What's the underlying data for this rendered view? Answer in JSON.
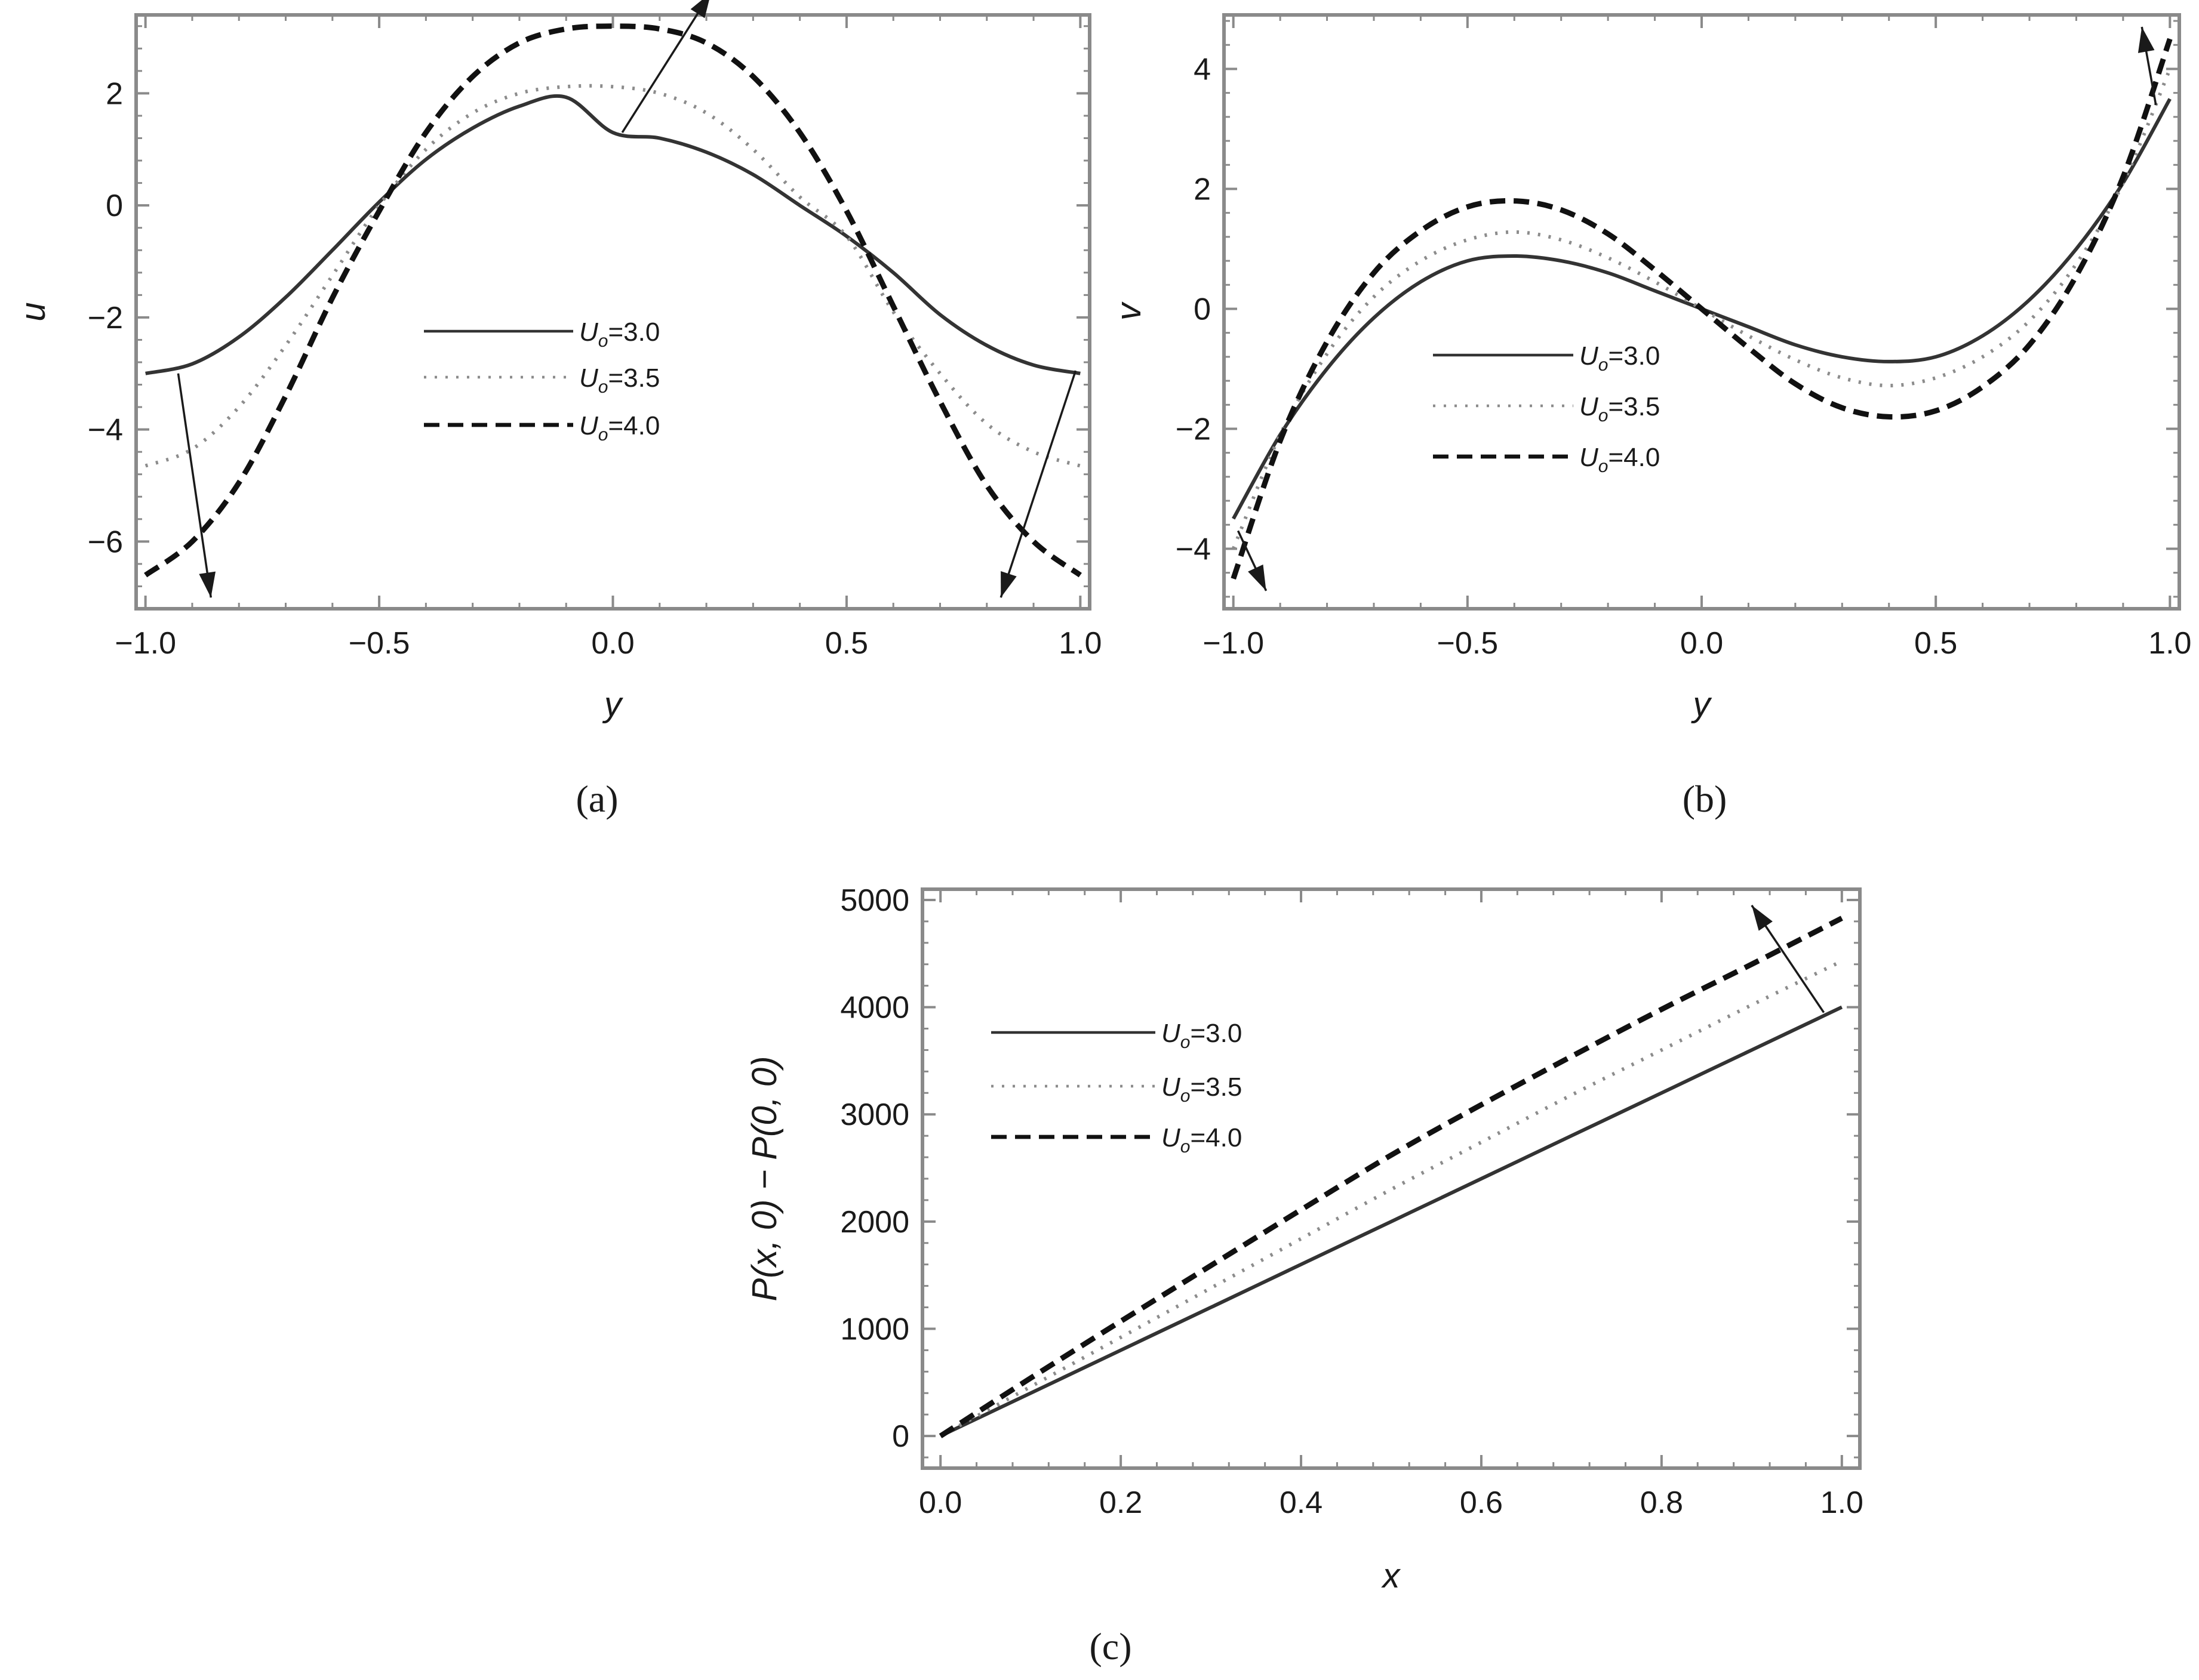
{
  "chart_data": [
    {
      "panel": "a",
      "caption": "(a)",
      "type": "line",
      "xlabel": "y",
      "ylabel": "u",
      "xlim": [
        -1.02,
        1.02
      ],
      "ylim": [
        -7.2,
        3.4
      ],
      "xticks": [
        -1.0,
        -0.5,
        0.0,
        0.5,
        1.0
      ],
      "xtick_labels": [
        "−1.0",
        "−0.5",
        "0.0",
        "0.5",
        "1.0"
      ],
      "yticks": [
        -6,
        -4,
        -2,
        0,
        2
      ],
      "ytick_labels": [
        "−6",
        "−4",
        "−2",
        "0",
        "2"
      ],
      "legend_position": "center",
      "grid": false,
      "series": [
        {
          "name": "Uo=3.0",
          "style": "solid",
          "x": [
            -1.0,
            -0.9,
            -0.8,
            -0.7,
            -0.6,
            -0.5,
            -0.4,
            -0.3,
            -0.2,
            -0.1,
            0.0,
            0.1,
            0.2,
            0.3,
            0.4,
            0.5,
            0.6,
            0.7,
            0.8,
            0.9,
            1.0
          ],
          "y": [
            -3.0,
            -2.83,
            -2.35,
            -1.64,
            -0.8,
            0.06,
            0.82,
            1.38,
            1.77,
            1.93,
            1.3,
            1.2,
            0.95,
            0.55,
            0.0,
            -0.55,
            -1.2,
            -1.95,
            -2.5,
            -2.85,
            -3.0
          ]
        },
        {
          "name": "Uo=3.5",
          "style": "dotted",
          "x": [
            -1.0,
            -0.9,
            -0.8,
            -0.7,
            -0.6,
            -0.5,
            -0.4,
            -0.3,
            -0.2,
            -0.1,
            0.0,
            0.1,
            0.2,
            0.3,
            0.4,
            0.5,
            0.6,
            0.7,
            0.8,
            0.9,
            1.0
          ],
          "y": [
            -4.65,
            -4.35,
            -3.6,
            -2.5,
            -1.25,
            0.0,
            1.0,
            1.65,
            2.0,
            2.12,
            2.12,
            2.0,
            1.65,
            1.0,
            0.15,
            -0.55,
            -1.9,
            -3.0,
            -3.9,
            -4.4,
            -4.65
          ]
        },
        {
          "name": "Uo=4.0",
          "style": "dashed",
          "x": [
            -1.0,
            -0.9,
            -0.8,
            -0.7,
            -0.6,
            -0.5,
            -0.4,
            -0.3,
            -0.2,
            -0.1,
            0.0,
            0.1,
            0.2,
            0.3,
            0.4,
            0.5,
            0.6,
            0.7,
            0.8,
            0.9,
            1.0
          ],
          "y": [
            -6.6,
            -6.0,
            -4.95,
            -3.4,
            -1.65,
            -0.1,
            1.3,
            2.3,
            2.9,
            3.15,
            3.2,
            3.15,
            2.9,
            2.3,
            1.3,
            -0.1,
            -1.8,
            -3.5,
            -5.0,
            -6.0,
            -6.6
          ]
        }
      ]
    },
    {
      "panel": "b",
      "caption": "(b)",
      "type": "line",
      "xlabel": "y",
      "ylabel": "v",
      "xlim": [
        -1.02,
        1.02
      ],
      "ylim": [
        -5.0,
        4.9
      ],
      "xticks": [
        -1.0,
        -0.5,
        0.0,
        0.5,
        1.0
      ],
      "xtick_labels": [
        "−1.0",
        "−0.5",
        "0.0",
        "0.5",
        "1.0"
      ],
      "yticks": [
        -4,
        -2,
        0,
        2,
        4
      ],
      "ytick_labels": [
        "−4",
        "−2",
        "0",
        "2",
        "4"
      ],
      "legend_position": "center",
      "grid": false,
      "series": [
        {
          "name": "Uo=3.0",
          "style": "solid",
          "x": [
            -1.0,
            -0.9,
            -0.8,
            -0.7,
            -0.6,
            -0.5,
            -0.4,
            -0.3,
            -0.2,
            -0.1,
            0.0,
            0.1,
            0.2,
            0.3,
            0.4,
            0.5,
            0.6,
            0.7,
            0.8,
            0.9,
            1.0
          ],
          "y": [
            -3.5,
            -2.1,
            -1.0,
            -0.15,
            0.45,
            0.8,
            0.88,
            0.8,
            0.6,
            0.3,
            0.0,
            -0.3,
            -0.6,
            -0.8,
            -0.88,
            -0.8,
            -0.45,
            0.15,
            1.0,
            2.1,
            3.5
          ]
        },
        {
          "name": "Uo=3.5",
          "style": "dotted",
          "x": [
            -1.0,
            -0.9,
            -0.8,
            -0.7,
            -0.6,
            -0.5,
            -0.4,
            -0.3,
            -0.2,
            -0.1,
            0.0,
            0.1,
            0.2,
            0.3,
            0.4,
            0.5,
            0.6,
            0.7,
            0.8,
            0.9,
            1.0
          ],
          "y": [
            -4.0,
            -2.1,
            -0.75,
            0.2,
            0.8,
            1.15,
            1.28,
            1.15,
            0.85,
            0.45,
            0.0,
            -0.45,
            -0.85,
            -1.15,
            -1.28,
            -1.15,
            -0.8,
            -0.2,
            0.75,
            2.1,
            4.0
          ]
        },
        {
          "name": "Uo=4.0",
          "style": "dashed",
          "x": [
            -1.0,
            -0.9,
            -0.8,
            -0.7,
            -0.6,
            -0.5,
            -0.4,
            -0.3,
            -0.2,
            -0.1,
            0.0,
            0.1,
            0.2,
            0.3,
            0.4,
            0.5,
            0.6,
            0.7,
            0.8,
            0.9,
            1.0
          ],
          "y": [
            -4.5,
            -2.2,
            -0.55,
            0.6,
            1.3,
            1.7,
            1.8,
            1.65,
            1.25,
            0.65,
            0.0,
            -0.65,
            -1.25,
            -1.65,
            -1.8,
            -1.7,
            -1.3,
            -0.6,
            0.55,
            2.2,
            4.5
          ]
        }
      ]
    },
    {
      "panel": "c",
      "caption": "(c)",
      "type": "line",
      "xlabel": "x",
      "ylabel": "P(x, 0) − P(0, 0)",
      "xlim": [
        -0.02,
        1.02
      ],
      "ylim": [
        -300,
        5100
      ],
      "xticks": [
        0.0,
        0.2,
        0.4,
        0.6,
        0.8,
        1.0
      ],
      "xtick_labels": [
        "0.0",
        "0.2",
        "0.4",
        "0.6",
        "0.8",
        "1.0"
      ],
      "yticks": [
        0,
        1000,
        2000,
        3000,
        4000,
        5000
      ],
      "ytick_labels": [
        "0",
        "1000",
        "2000",
        "3000",
        "4000",
        "5000"
      ],
      "legend_position": "top-left",
      "grid": false,
      "series": [
        {
          "name": "Uo=3.0",
          "style": "solid",
          "x": [
            0.0,
            0.1,
            0.2,
            0.3,
            0.4,
            0.5,
            0.6,
            0.7,
            0.8,
            0.9,
            1.0
          ],
          "y": [
            0,
            400,
            800,
            1200,
            1600,
            2000,
            2400,
            2800,
            3200,
            3600,
            4000
          ]
        },
        {
          "name": "Uo=3.5",
          "style": "dotted",
          "x": [
            0.0,
            0.1,
            0.2,
            0.3,
            0.4,
            0.5,
            0.6,
            0.7,
            0.8,
            0.9,
            1.0
          ],
          "y": [
            0,
            460,
            920,
            1380,
            1840,
            2300,
            2740,
            3180,
            3600,
            4020,
            4430
          ]
        },
        {
          "name": "Uo=4.0",
          "style": "dashed",
          "x": [
            0.0,
            0.1,
            0.2,
            0.3,
            0.4,
            0.5,
            0.6,
            0.7,
            0.8,
            0.9,
            1.0
          ],
          "y": [
            0,
            540,
            1070,
            1590,
            2110,
            2620,
            3090,
            3540,
            3980,
            4400,
            4830
          ]
        }
      ]
    }
  ],
  "legend_labels": {
    "symbol": "U",
    "subscript": "o",
    "values": [
      "=3.0",
      "=3.5",
      "=4.0"
    ]
  },
  "colors": {
    "frame": "#8a8a8a",
    "ink": "#1a1a1a",
    "solid": "#333333",
    "dotted": "#8c8c8c",
    "dashed": "#111111"
  }
}
